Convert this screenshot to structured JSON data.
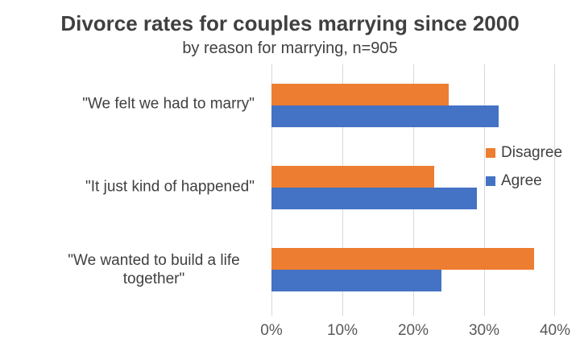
{
  "chart_data": {
    "type": "bar",
    "orientation": "horizontal",
    "title": "Divorce rates for couples marrying since 2000",
    "subtitle": "by reason for marrying, n=905",
    "sample_size": "n=905",
    "categories": [
      "\"We felt we had to marry\"",
      "\"It just kind of happened\"",
      "\"We wanted to build a life together\""
    ],
    "series": [
      {
        "name": "Disagree",
        "color": "#ED7D31",
        "values": [
          25,
          23,
          37
        ]
      },
      {
        "name": "Agree",
        "color": "#4472C4",
        "values": [
          32,
          29,
          24
        ]
      }
    ],
    "x_axis": {
      "ticks": [
        "0%",
        "10%",
        "20%",
        "30%",
        "40%"
      ],
      "min": 0,
      "max": 40,
      "unit": "%"
    },
    "legend_position": "right",
    "grid": "vertical",
    "gridline_color": "#D9D9D9",
    "title_color": "#404040",
    "axis_label_color": "#595959"
  }
}
